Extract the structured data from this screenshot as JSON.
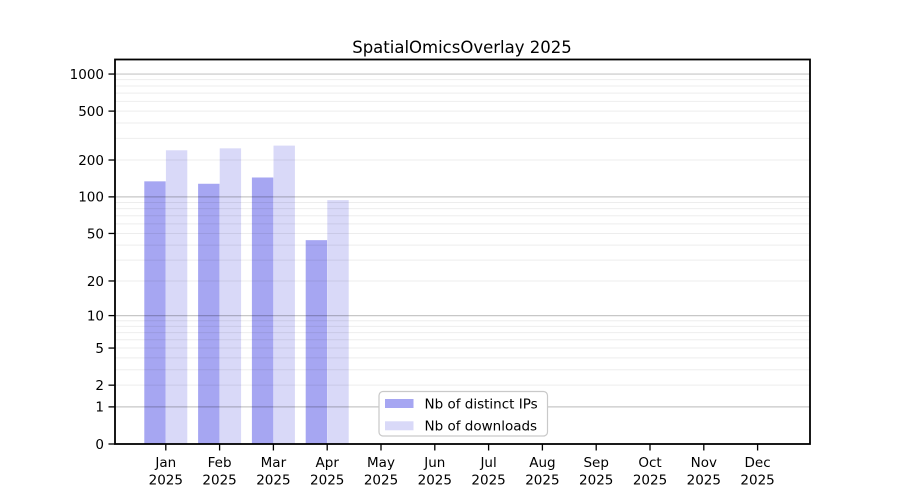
{
  "title": "SpatialOmicsOverlay 2025",
  "chart_data": {
    "type": "bar",
    "title": "SpatialOmicsOverlay 2025",
    "yscale": "log1p",
    "categories": [
      "Jan 2025",
      "Feb 2025",
      "Mar 2025",
      "Apr 2025",
      "May 2025",
      "Jun 2025",
      "Jul 2025",
      "Aug 2025",
      "Sep 2025",
      "Oct 2025",
      "Nov 2025",
      "Dec 2025"
    ],
    "x_tick_line1": [
      "Jan",
      "Feb",
      "Mar",
      "Apr",
      "May",
      "Jun",
      "Jul",
      "Aug",
      "Sep",
      "Oct",
      "Nov",
      "Dec"
    ],
    "x_tick_line2": "2025",
    "series": [
      {
        "name": "Nb of distinct IPs",
        "color": "#a6a6f2",
        "values": [
          134,
          128,
          144,
          44,
          0,
          0,
          0,
          0,
          0,
          0,
          0,
          0
        ]
      },
      {
        "name": "Nb of downloads",
        "color": "#d9d9f8",
        "values": [
          240,
          249,
          262,
          94,
          0,
          0,
          0,
          0,
          0,
          0,
          0,
          0
        ]
      }
    ],
    "y_ticks": [
      0,
      1,
      2,
      5,
      10,
      20,
      50,
      100,
      200,
      500,
      1000
    ],
    "ylim": [
      0,
      1310
    ],
    "grid": "horizontal; light minor lines at 2-9,20-90,200-900; darker lines at 1,10,100,1000",
    "legend_position": "inside plot, bottom center-left"
  },
  "legend": {
    "items": [
      {
        "label": "Nb of distinct IPs",
        "swatch_color": "#a6a6f2"
      },
      {
        "label": "Nb of downloads",
        "swatch_color": "#d9d9f8"
      }
    ]
  },
  "colors": {
    "bar_ips": "#a6a6f2",
    "bar_downloads": "#d9d9f8",
    "frame": "#000000",
    "text": "#000000",
    "grid_major": "#c7c7c7",
    "grid_minor": "#ededed",
    "legend_border": "#c9c9c9",
    "background": "#ffffff"
  }
}
